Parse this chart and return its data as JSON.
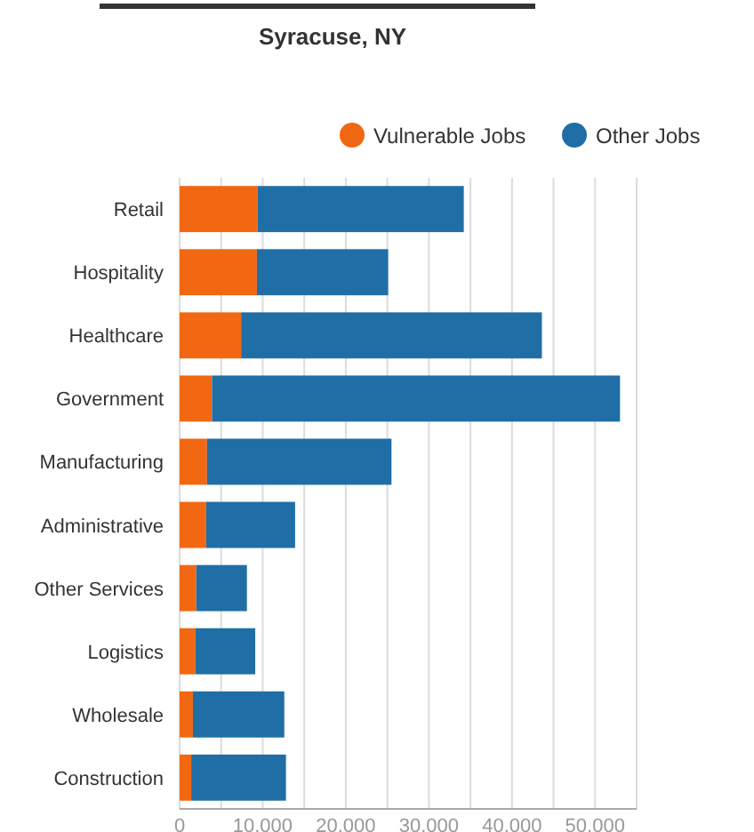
{
  "chart_data": {
    "type": "bar",
    "orientation": "horizontal",
    "stacked": true,
    "title": "Syracuse, NY",
    "categories": [
      "Retail",
      "Hospitality",
      "Healthcare",
      "Government",
      "Manufacturing",
      "Administrative",
      "Other Services",
      "Logistics",
      "Wholesale",
      "Construction"
    ],
    "series": [
      {
        "name": "Vulnerable Jobs",
        "color": "#f26711",
        "values": [
          9400,
          9300,
          7400,
          3900,
          3300,
          3200,
          2000,
          1900,
          1600,
          1400
        ]
      },
      {
        "name": "Other Jobs",
        "color": "#1f6fa6",
        "values": [
          24800,
          15800,
          36200,
          49100,
          22200,
          10700,
          6100,
          7200,
          11000,
          11400
        ]
      }
    ],
    "xlim": [
      0,
      55000
    ],
    "xticks": [
      0,
      {
        "value": 5000,
        "label": null
      },
      {
        "value": 10000,
        "label": "10.000"
      },
      {
        "value": 15000,
        "label": null
      },
      {
        "value": 20000,
        "label": "20.000"
      },
      {
        "value": 25000,
        "label": null
      },
      {
        "value": 30000,
        "label": "30.000"
      },
      {
        "value": 35000,
        "label": null
      },
      {
        "value": 40000,
        "label": "40.000"
      },
      {
        "value": 45000,
        "label": null
      },
      {
        "value": 50000,
        "label": "50.000"
      },
      {
        "value": 55000,
        "label": null
      }
    ],
    "grid": "x",
    "legend": "top right"
  }
}
